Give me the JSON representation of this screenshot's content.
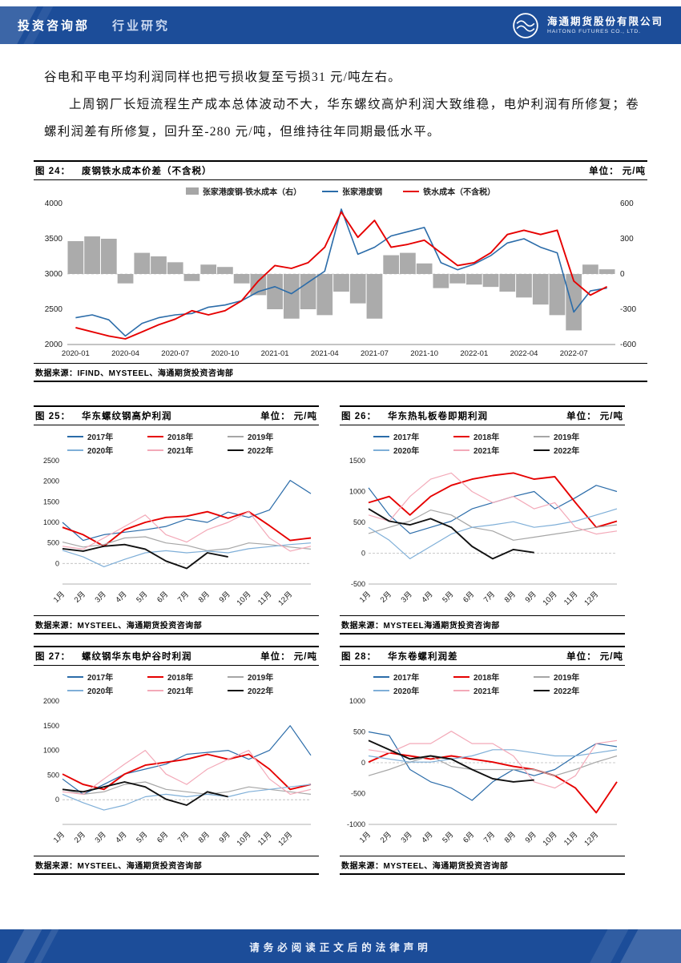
{
  "header": {
    "department": "投资咨询部",
    "report_type": "行业研究",
    "company_cn": "海通期货股份有限公司",
    "company_en": "HAITONG FUTURES CO., LTD."
  },
  "body": {
    "para1": "谷电和平电平均利润同样也把亏损收复至亏损31 元/吨左右。",
    "para2": "上周钢厂长短流程生产成本总体波动不大，华东螺纹高炉利润大致维稳，电炉利润有所修复；卷螺利润差有所修复，回升至-280 元/吨，但维持往年同期最低水平。"
  },
  "footer": {
    "text": "请务必阅读正文后的法律声明"
  },
  "colors": {
    "brand_blue": "#1C4D99",
    "bar_gray": "#A6A6A6"
  },
  "chart_data": [
    {
      "id": "fig24",
      "type": "combo",
      "fig_label": "图 24：",
      "title": "废钢铁水成本价差（不含税）",
      "unit": "单位： 元/吨",
      "source": "数据来源：IFIND、MYSTEEL、海通期货投资咨询部",
      "x_ticks": [
        "2020-01",
        "2020-04",
        "2020-07",
        "2020-10",
        "2021-01",
        "2021-04",
        "2021-07",
        "2021-10",
        "2022-01",
        "2022-04",
        "2022-07"
      ],
      "left_ylim": [
        2000,
        4000
      ],
      "left_ticks": [
        2000,
        2500,
        3000,
        3500,
        4000
      ],
      "right_ylim": [
        -600,
        600
      ],
      "right_ticks": [
        -600,
        -300,
        0,
        300,
        600
      ],
      "legend": [
        {
          "label": "张家港废钢-铁水成本（右）",
          "color": "#A6A6A6",
          "shape": "bar"
        },
        {
          "label": "张家港废钢",
          "color": "#2B6CA9",
          "shape": "line"
        },
        {
          "label": "铁水成本（不含税）",
          "color": "#E60000",
          "shape": "line"
        }
      ],
      "bars": {
        "name": "张家港废钢-铁水成本（右）",
        "color": "#ABABAB",
        "axis": "right",
        "values": [
          280,
          320,
          300,
          -80,
          180,
          150,
          100,
          -60,
          80,
          60,
          -80,
          -180,
          -300,
          -380,
          -300,
          -350,
          -150,
          -250,
          -380,
          160,
          180,
          90,
          -120,
          -80,
          -90,
          -110,
          -150,
          -200,
          -260,
          -350,
          -480,
          80,
          40
        ]
      },
      "series": [
        {
          "name": "张家港废钢",
          "color": "#2B6CA9",
          "axis": "left",
          "values": [
            2380,
            2420,
            2350,
            2120,
            2300,
            2380,
            2420,
            2440,
            2530,
            2560,
            2620,
            2750,
            2820,
            2720,
            2880,
            3040,
            3920,
            3280,
            3380,
            3540,
            3600,
            3660,
            3160,
            3060,
            3140,
            3260,
            3440,
            3500,
            3380,
            3300,
            2460,
            2760,
            2800
          ]
        },
        {
          "name": "铁水成本（不含税）",
          "color": "#E60000",
          "axis": "left",
          "values": [
            2240,
            2180,
            2120,
            2080,
            2180,
            2280,
            2360,
            2480,
            2420,
            2480,
            2620,
            2900,
            3120,
            3080,
            3160,
            3380,
            3880,
            3520,
            3760,
            3380,
            3420,
            3480,
            3300,
            3120,
            3160,
            3300,
            3560,
            3620,
            3560,
            3620,
            2900,
            2700,
            2820
          ]
        }
      ]
    },
    {
      "id": "fig25",
      "type": "line",
      "fig_label": "图 25：",
      "title": "华东螺纹钢高炉利润",
      "unit": "单位： 元/吨",
      "source": "数据来源：MYSTEEL、海通期货投资咨询部",
      "x_ticks": [
        "1月",
        "2月",
        "3月",
        "4月",
        "5月",
        "6月",
        "7月",
        "8月",
        "9月",
        "10月",
        "11月",
        "12月"
      ],
      "ylim": [
        -500,
        2500
      ],
      "yticks": [
        0,
        500,
        1000,
        1500,
        2000,
        2500
      ],
      "series": [
        {
          "name": "2017年",
          "color": "#2B6CA9",
          "values": [
            1000,
            560,
            700,
            760,
            820,
            900,
            1080,
            1000,
            1250,
            1120,
            1300,
            2020,
            1700
          ]
        },
        {
          "name": "2018年",
          "color": "#E60000",
          "values": [
            880,
            700,
            420,
            820,
            1000,
            1120,
            1150,
            1260,
            1100,
            1260,
            920,
            560,
            620
          ]
        },
        {
          "name": "2019年",
          "color": "#A6A6A6",
          "values": [
            520,
            400,
            460,
            620,
            650,
            500,
            440,
            310,
            360,
            500,
            460,
            400,
            350
          ]
        },
        {
          "name": "2020年",
          "color": "#7FAFD8",
          "values": [
            320,
            160,
            -80,
            100,
            260,
            310,
            260,
            300,
            260,
            360,
            410,
            460,
            500
          ]
        },
        {
          "name": "2021年",
          "color": "#F3A9B8",
          "values": [
            420,
            350,
            620,
            900,
            1180,
            700,
            520,
            820,
            1000,
            1260,
            620,
            300,
            420
          ]
        },
        {
          "name": "2022年",
          "color": "#111111",
          "values": [
            360,
            300,
            420,
            460,
            350,
            60,
            -120,
            260,
            160
          ]
        }
      ]
    },
    {
      "id": "fig26",
      "type": "line",
      "fig_label": "图 26：",
      "title": "华东热轧板卷即期利润",
      "unit": "单位： 元/吨",
      "source": "数据来源：MYSTEEL海通期货投资咨询部",
      "x_ticks": [
        "1月",
        "2月",
        "3月",
        "4月",
        "5月",
        "6月",
        "7月",
        "8月",
        "9月",
        "10月",
        "11月",
        "12月"
      ],
      "ylim": [
        -500,
        1500
      ],
      "yticks": [
        -500,
        0,
        500,
        1000,
        1500
      ],
      "series": [
        {
          "name": "2017年",
          "color": "#2B6CA9",
          "values": [
            1060,
            620,
            320,
            420,
            520,
            720,
            820,
            920,
            1000,
            720,
            900,
            1100,
            1000
          ]
        },
        {
          "name": "2018年",
          "color": "#E60000",
          "values": [
            820,
            920,
            620,
            920,
            1100,
            1200,
            1260,
            1300,
            1200,
            1240,
            820,
            420,
            520
          ]
        },
        {
          "name": "2019年",
          "color": "#A6A6A6",
          "values": [
            320,
            420,
            520,
            700,
            620,
            420,
            360,
            210,
            260,
            310,
            360,
            420,
            460
          ]
        },
        {
          "name": "2020年",
          "color": "#7FAFD8",
          "values": [
            420,
            210,
            -90,
            110,
            310,
            420,
            460,
            510,
            420,
            460,
            520,
            620,
            720
          ]
        },
        {
          "name": "2021年",
          "color": "#F3A9B8",
          "values": [
            620,
            520,
            920,
            1200,
            1300,
            1000,
            820,
            920,
            720,
            820,
            420,
            310,
            360
          ]
        },
        {
          "name": "2022年",
          "color": "#111111",
          "values": [
            720,
            520,
            460,
            560,
            420,
            110,
            -90,
            60,
            10
          ]
        }
      ]
    },
    {
      "id": "fig27",
      "type": "line",
      "fig_label": "图 27：",
      "title": "螺纹钢华东电炉谷时利润",
      "unit": "单位： 元/吨",
      "source": "数据来源：MYSTEEL、海通期货投资咨询部",
      "x_ticks": [
        "1月",
        "2月",
        "3月",
        "4月",
        "5月",
        "6月",
        "7月",
        "8月",
        "9月",
        "10月",
        "11月",
        "12月"
      ],
      "ylim": [
        -500,
        2000
      ],
      "yticks": [
        0,
        500,
        1000,
        1500,
        2000
      ],
      "series": [
        {
          "name": "2017年",
          "color": "#2B6CA9",
          "values": [
            420,
            110,
            310,
            520,
            620,
            720,
            920,
            960,
            1000,
            820,
            1000,
            1500,
            900
          ]
        },
        {
          "name": "2018年",
          "color": "#E60000",
          "values": [
            520,
            310,
            210,
            520,
            700,
            760,
            820,
            920,
            820,
            920,
            620,
            210,
            310
          ]
        },
        {
          "name": "2019年",
          "color": "#A6A6A6",
          "values": [
            210,
            110,
            160,
            310,
            360,
            210,
            160,
            110,
            160,
            260,
            210,
            160,
            110
          ]
        },
        {
          "name": "2020年",
          "color": "#7FAFD8",
          "values": [
            110,
            -60,
            -210,
            -110,
            60,
            110,
            60,
            110,
            60,
            160,
            210,
            260,
            310
          ]
        },
        {
          "name": "2021年",
          "color": "#F3A9B8",
          "values": [
            160,
            110,
            420,
            720,
            1000,
            520,
            310,
            620,
            820,
            1000,
            420,
            110,
            210
          ]
        },
        {
          "name": "2022年",
          "color": "#111111",
          "values": [
            210,
            160,
            260,
            360,
            260,
            10,
            -110,
            160,
            60
          ]
        }
      ]
    },
    {
      "id": "fig28",
      "type": "line",
      "fig_label": "图 28：",
      "title": "华东卷螺利润差",
      "unit": "单位： 元/吨",
      "source": "数据来源：MYSTEEL、海通期货投资咨询部",
      "x_ticks": [
        "1月",
        "2月",
        "3月",
        "4月",
        "5月",
        "6月",
        "7月",
        "8月",
        "9月",
        "10月",
        "11月",
        "12月"
      ],
      "ylim": [
        -1000,
        1000
      ],
      "yticks": [
        -1000,
        -500,
        0,
        500,
        1000
      ],
      "series": [
        {
          "name": "2017年",
          "color": "#2B6CA9",
          "values": [
            500,
            440,
            -110,
            -310,
            -410,
            -610,
            -310,
            -110,
            -210,
            -110,
            110,
            310,
            260
          ]
        },
        {
          "name": "2018年",
          "color": "#E60000",
          "values": [
            10,
            160,
            110,
            60,
            110,
            60,
            10,
            -60,
            -110,
            -210,
            -410,
            -810,
            -310
          ]
        },
        {
          "name": "2019年",
          "color": "#A6A6A6",
          "values": [
            -210,
            -110,
            10,
            110,
            -60,
            -110,
            -110,
            -110,
            -110,
            -210,
            -110,
            10,
            110
          ]
        },
        {
          "name": "2020年",
          "color": "#7FAFD8",
          "values": [
            110,
            60,
            10,
            10,
            60,
            110,
            210,
            210,
            160,
            110,
            110,
            160,
            210
          ]
        },
        {
          "name": "2021年",
          "color": "#F3A9B8",
          "values": [
            210,
            160,
            310,
            310,
            510,
            310,
            310,
            110,
            -310,
            -410,
            -210,
            310,
            360
          ]
        },
        {
          "name": "2022年",
          "color": "#111111",
          "values": [
            360,
            210,
            60,
            110,
            60,
            -110,
            -260,
            -310,
            -280
          ]
        }
      ]
    }
  ]
}
